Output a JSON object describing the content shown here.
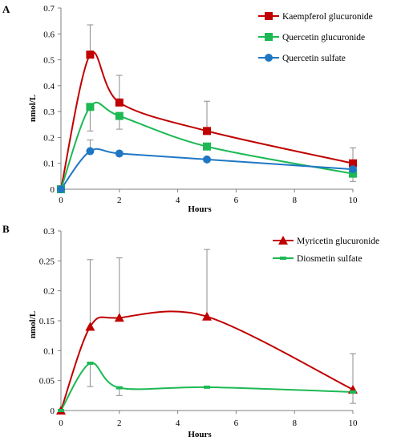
{
  "chart_data": [
    {
      "type": "line",
      "panel_label": "A",
      "xlabel": "Hours",
      "ylabel": "nmol/L",
      "xlim": [
        0,
        10
      ],
      "ylim": [
        0,
        0.7
      ],
      "xticks": [
        0,
        2,
        4,
        6,
        8,
        10
      ],
      "yticks": [
        0,
        0.1,
        0.2,
        0.3,
        0.4,
        0.5,
        0.6,
        0.7
      ],
      "grid": false,
      "legend_position": "top-right",
      "series": [
        {
          "name": "Kaempferol glucuronide",
          "color": "#c00000",
          "marker": "square",
          "x": [
            0,
            1,
            2,
            5,
            10
          ],
          "y": [
            0,
            0.52,
            0.335,
            0.225,
            0.1
          ],
          "error_upper": [
            0,
            0.635,
            0.44,
            0.34,
            0.16
          ]
        },
        {
          "name": "Quercetin glucuronide",
          "color": "#1db954",
          "marker": "square",
          "x": [
            0,
            1,
            2,
            5,
            10
          ],
          "y": [
            0,
            0.318,
            0.283,
            0.165,
            0.06
          ],
          "error_lower": [
            0,
            0.225,
            0.232,
            0,
            0.03
          ]
        },
        {
          "name": "Quercetin sulfate",
          "color": "#1f77c4",
          "marker": "circle",
          "x": [
            0,
            1,
            2,
            5,
            10
          ],
          "y": [
            0,
            0.147,
            0.138,
            0.115,
            0.077
          ],
          "error_upper": [
            0,
            0.19,
            0,
            0,
            0
          ]
        }
      ]
    },
    {
      "type": "line",
      "panel_label": "B",
      "xlabel": "Hours",
      "ylabel": "nmol/L",
      "xlim": [
        0,
        10
      ],
      "ylim": [
        0,
        0.3
      ],
      "xticks": [
        0,
        2,
        4,
        6,
        8,
        10
      ],
      "yticks": [
        0,
        0.05,
        0.1,
        0.15,
        0.2,
        0.25,
        0.3
      ],
      "ytick_labels": [
        "0",
        "0.05",
        "0.1",
        "0.15",
        "0.2",
        "0.25",
        "0.3"
      ],
      "grid": false,
      "legend_position": "top-right",
      "series": [
        {
          "name": "Myricetin glucuronide",
          "color": "#c00000",
          "marker": "triangle",
          "x": [
            0,
            1,
            2,
            5,
            10
          ],
          "y": [
            0,
            0.14,
            0.155,
            0.157,
            0.035
          ],
          "error_upper": [
            0,
            0.252,
            0.255,
            0.269,
            0.095
          ]
        },
        {
          "name": "Diosmetin sulfate",
          "color": "#1db954",
          "marker": "dash",
          "x": [
            0,
            1,
            2,
            5,
            10
          ],
          "y": [
            0,
            0.079,
            0.038,
            0.039,
            0.031
          ],
          "error_lower": [
            0,
            0.04,
            0.025,
            0,
            0.012
          ]
        }
      ]
    }
  ]
}
